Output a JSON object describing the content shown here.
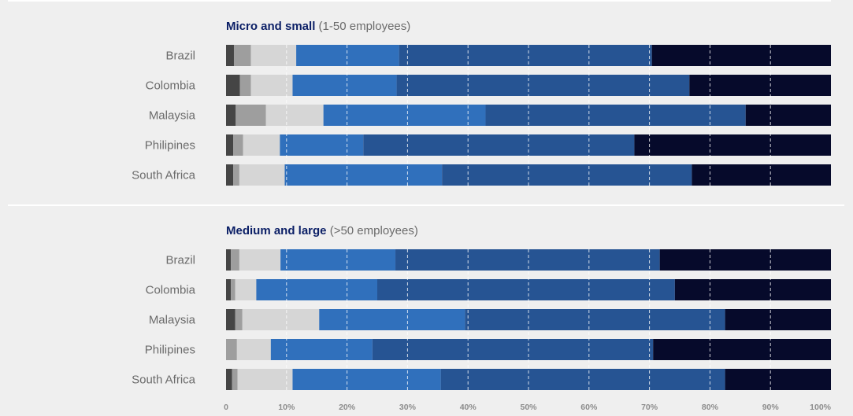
{
  "chart_data": {
    "type": "bar",
    "orientation": "horizontal",
    "stacked": true,
    "colors": [
      "#454545",
      "#9e9e9e",
      "#d6d6d6",
      "#3070bc",
      "#265493",
      "#060a2b"
    ],
    "xlim": [
      0,
      100
    ],
    "x_ticks": [
      "0",
      "10%",
      "20%",
      "30%",
      "40%",
      "50%",
      "60%",
      "70%",
      "80%",
      "90%",
      "100%"
    ],
    "grid": "vertical dashed white",
    "panels": [
      {
        "title_bold": "Micro and small",
        "title_rest": " (1-50 employees)",
        "categories": [
          "Brazil",
          "Colombia",
          "Malaysia",
          "Philipines",
          "South Africa"
        ],
        "series": [
          {
            "values": [
              1.3,
              2.3,
              1.6,
              1.2,
              1.2
            ]
          },
          {
            "values": [
              2.8,
              1.8,
              5.0,
              1.6,
              1.0
            ]
          },
          {
            "values": [
              7.5,
              6.9,
              9.5,
              6.1,
              7.5
            ]
          },
          {
            "values": [
              17.0,
              17.2,
              26.8,
              13.8,
              26.0
            ]
          },
          {
            "values": [
              41.8,
              48.4,
              43.0,
              44.8,
              41.3
            ]
          },
          {
            "values": [
              29.6,
              23.4,
              14.1,
              32.5,
              23.0
            ]
          }
        ]
      },
      {
        "title_bold": "Medium and large",
        "title_rest": " (>50 employees)",
        "categories": [
          "Brazil",
          "Colombia",
          "Malaysia",
          "Philipines",
          "South Africa"
        ],
        "series": [
          {
            "values": [
              0.8,
              0.8,
              1.5,
              0.0,
              1.0
            ]
          },
          {
            "values": [
              1.4,
              0.7,
              1.2,
              1.8,
              0.9
            ]
          },
          {
            "values": [
              6.8,
              3.5,
              12.7,
              5.6,
              9.1
            ]
          },
          {
            "values": [
              19.0,
              20.0,
              24.1,
              16.8,
              24.5
            ]
          },
          {
            "values": [
              43.7,
              49.2,
              43.0,
              46.4,
              47.0
            ]
          },
          {
            "values": [
              28.3,
              25.8,
              17.5,
              29.4,
              17.5
            ]
          }
        ]
      }
    ]
  }
}
